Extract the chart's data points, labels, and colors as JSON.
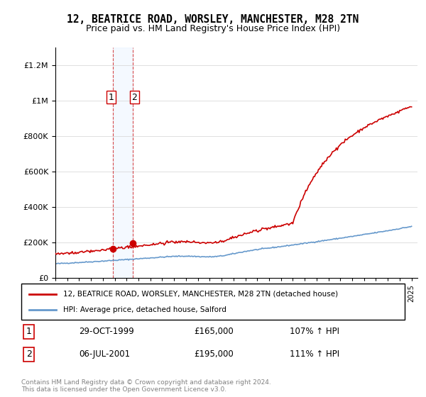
{
  "title": "12, BEATRICE ROAD, WORSLEY, MANCHESTER, M28 2TN",
  "subtitle": "Price paid vs. HM Land Registry's House Price Index (HPI)",
  "legend_line1": "12, BEATRICE ROAD, WORSLEY, MANCHESTER, M28 2TN (detached house)",
  "legend_line2": "HPI: Average price, detached house, Salford",
  "sale1_label": "1",
  "sale1_date": "29-OCT-1999",
  "sale1_price": "£165,000",
  "sale1_hpi": "107% ↑ HPI",
  "sale1_year": 1999.83,
  "sale1_value": 165000,
  "sale2_label": "2",
  "sale2_date": "06-JUL-2001",
  "sale2_price": "£195,000",
  "sale2_hpi": "111% ↑ HPI",
  "sale2_year": 2001.51,
  "sale2_value": 195000,
  "price_color": "#cc0000",
  "hpi_color": "#6699cc",
  "sale_region_color": "#ddeeff",
  "ylim": [
    0,
    1300000
  ],
  "xlim_start": 1995.0,
  "xlim_end": 2025.5,
  "footer": "Contains HM Land Registry data © Crown copyright and database right 2024.\nThis data is licensed under the Open Government Licence v3.0."
}
